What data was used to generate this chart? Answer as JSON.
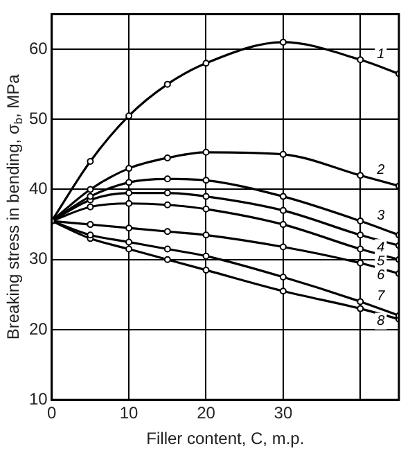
{
  "chart_data": {
    "type": "line",
    "xlabel": "Filler content, C, m.p.",
    "ylabel": "Breaking stress in bending, σ$_{b}$, MPa",
    "x": [
      0,
      5,
      10,
      15,
      20,
      30,
      40,
      45
    ],
    "series": [
      {
        "name": "1",
        "color": "#000000",
        "values": [
          35.5,
          44,
          50.5,
          55,
          58,
          61,
          58.5,
          56.5
        ]
      },
      {
        "name": "2",
        "color": "#000000",
        "values": [
          35.5,
          40,
          43,
          44.5,
          45.3,
          45,
          42,
          40.5
        ]
      },
      {
        "name": "3",
        "color": "#000000",
        "values": [
          35.5,
          39,
          41,
          41.5,
          41.3,
          39,
          35.5,
          33.5
        ]
      },
      {
        "name": "4",
        "color": "#000000",
        "values": [
          35.5,
          38.5,
          39.5,
          39.5,
          39,
          37,
          33.5,
          32
        ]
      },
      {
        "name": "5",
        "color": "#000000",
        "values": [
          35.5,
          37.5,
          38,
          37.8,
          37.2,
          35,
          31.5,
          30
        ]
      },
      {
        "name": "6",
        "color": "#000000",
        "values": [
          35.5,
          35,
          34.5,
          34,
          33.5,
          31.8,
          29.5,
          28
        ]
      },
      {
        "name": "7",
        "color": "#000000",
        "values": [
          35.5,
          33.5,
          32.5,
          31.5,
          30.5,
          27.5,
          24,
          22
        ]
      },
      {
        "name": "8",
        "color": "#000000",
        "values": [
          35.5,
          33,
          31.5,
          30,
          28.5,
          25.5,
          23,
          21.5
        ]
      }
    ],
    "xlim": [
      0,
      45
    ],
    "xticks": [
      0,
      10,
      20,
      30,
      {
        "value": 40,
        "label": null
      }
    ],
    "ylim": [
      10,
      65
    ],
    "yticks": [
      10,
      20,
      30,
      40,
      50,
      60
    ],
    "grid": true,
    "legend": false,
    "marker": "circle",
    "line_style": "solid"
  }
}
